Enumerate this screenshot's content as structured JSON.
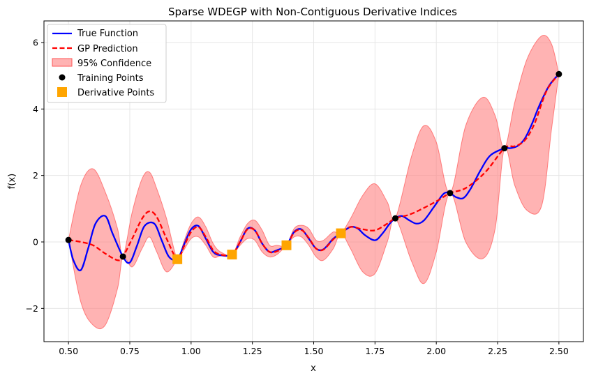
{
  "chart_data": {
    "type": "line",
    "title": "Sparse WDEGP with Non-Contiguous Derivative Indices",
    "xlabel": "x",
    "ylabel": "f(x)",
    "xlim": [
      0.4,
      2.6
    ],
    "ylim": [
      -3.0,
      6.65
    ],
    "xticks": [
      0.5,
      0.75,
      1.0,
      1.25,
      1.5,
      1.75,
      2.0,
      2.25,
      2.5
    ],
    "xtick_labels": [
      "0.50",
      "0.75",
      "1.00",
      "1.25",
      "1.50",
      "1.75",
      "2.00",
      "2.25",
      "2.50"
    ],
    "yticks": [
      -2,
      0,
      2,
      4,
      6
    ],
    "ytick_labels": [
      "−2",
      "0",
      "2",
      "4",
      "6"
    ],
    "grid": true,
    "legend_position": "upper-left",
    "legend": [
      {
        "key": "true",
        "label": "True Function"
      },
      {
        "key": "pred",
        "label": "GP Prediction"
      },
      {
        "key": "conf",
        "label": "95% Confidence"
      },
      {
        "key": "train",
        "label": "Training Points"
      },
      {
        "key": "deriv",
        "label": "Derivative Points"
      }
    ],
    "colors": {
      "true_function": "#0000ff",
      "gp_prediction": "#ff0000",
      "confidence_fill": "#ff8080",
      "confidence_edge": "#ff5555",
      "training_points": "#000000",
      "derivative_points": "#ffa500",
      "grid": "#e6e6e6"
    },
    "training_points": {
      "x": [
        0.5,
        0.722,
        1.833,
        2.056,
        2.278,
        2.5
      ],
      "y": [
        0.06,
        -0.44,
        0.71,
        1.47,
        2.82,
        5.05
      ]
    },
    "derivative_points": {
      "x": [
        0.944,
        1.167,
        1.389,
        1.611
      ],
      "y": [
        -0.52,
        -0.38,
        -0.1,
        0.26
      ]
    },
    "series": [
      {
        "name": "True Function",
        "x": [
          0.5,
          0.52,
          0.55,
          0.58,
          0.61,
          0.65,
          0.68,
          0.722,
          0.75,
          0.78,
          0.81,
          0.85,
          0.88,
          0.91,
          0.944,
          0.97,
          1.0,
          1.03,
          1.06,
          1.09,
          1.12,
          1.167,
          1.2,
          1.23,
          1.26,
          1.29,
          1.32,
          1.35,
          1.389,
          1.42,
          1.45,
          1.48,
          1.51,
          1.54,
          1.58,
          1.611,
          1.65,
          1.68,
          1.71,
          1.75,
          1.78,
          1.81,
          1.833,
          1.86,
          1.89,
          1.92,
          1.95,
          1.99,
          2.03,
          2.056,
          2.08,
          2.11,
          2.14,
          2.18,
          2.22,
          2.278,
          2.3,
          2.33,
          2.36,
          2.39,
          2.42,
          2.46,
          2.5
        ],
        "y": [
          0.06,
          -0.55,
          -0.85,
          -0.2,
          0.55,
          0.78,
          0.25,
          -0.44,
          -0.62,
          -0.1,
          0.48,
          0.55,
          0.05,
          -0.45,
          -0.52,
          -0.1,
          0.38,
          0.48,
          0.1,
          -0.3,
          -0.4,
          -0.38,
          0.0,
          0.4,
          0.35,
          -0.05,
          -0.3,
          -0.25,
          -0.1,
          0.3,
          0.38,
          0.1,
          -0.2,
          -0.22,
          0.1,
          0.26,
          0.45,
          0.4,
          0.2,
          0.05,
          0.25,
          0.55,
          0.71,
          0.78,
          0.65,
          0.55,
          0.65,
          1.05,
          1.45,
          1.47,
          1.35,
          1.32,
          1.6,
          2.15,
          2.6,
          2.82,
          2.82,
          2.88,
          3.1,
          3.55,
          4.1,
          4.7,
          5.05
        ]
      },
      {
        "name": "GP Prediction",
        "x": [
          0.5,
          0.55,
          0.6,
          0.65,
          0.7,
          0.722,
          0.76,
          0.8,
          0.83,
          0.86,
          0.9,
          0.944,
          0.97,
          1.0,
          1.03,
          1.06,
          1.09,
          1.12,
          1.167,
          1.2,
          1.23,
          1.26,
          1.29,
          1.32,
          1.35,
          1.389,
          1.42,
          1.45,
          1.48,
          1.51,
          1.54,
          1.58,
          1.611,
          1.65,
          1.7,
          1.75,
          1.8,
          1.833,
          1.9,
          2.0,
          2.056,
          2.12,
          2.2,
          2.278,
          2.32,
          2.36,
          2.4,
          2.45,
          2.5
        ],
        "y": [
          0.06,
          0.0,
          -0.1,
          -0.35,
          -0.55,
          -0.44,
          0.1,
          0.7,
          0.92,
          0.75,
          0.1,
          -0.52,
          -0.15,
          0.3,
          0.45,
          0.15,
          -0.25,
          -0.38,
          -0.38,
          0.0,
          0.38,
          0.35,
          -0.05,
          -0.3,
          -0.28,
          -0.1,
          0.28,
          0.36,
          0.12,
          -0.2,
          -0.23,
          0.08,
          0.26,
          0.45,
          0.38,
          0.35,
          0.55,
          0.71,
          0.85,
          1.22,
          1.47,
          1.62,
          2.1,
          2.82,
          2.88,
          3.05,
          3.55,
          4.55,
          5.05
        ]
      }
    ],
    "confidence_band": {
      "x": [
        0.5,
        0.55,
        0.6,
        0.65,
        0.7,
        0.722,
        0.76,
        0.8,
        0.83,
        0.86,
        0.9,
        0.944,
        0.97,
        1.0,
        1.03,
        1.06,
        1.09,
        1.12,
        1.167,
        1.2,
        1.23,
        1.26,
        1.29,
        1.32,
        1.35,
        1.389,
        1.42,
        1.45,
        1.48,
        1.51,
        1.54,
        1.58,
        1.611,
        1.65,
        1.7,
        1.75,
        1.8,
        1.833,
        1.9,
        1.95,
        2.0,
        2.056,
        2.12,
        2.19,
        2.24,
        2.278,
        2.32,
        2.37,
        2.43,
        2.47,
        2.5
      ],
      "lower": [
        0.06,
        -1.8,
        -2.5,
        -2.5,
        -1.4,
        -0.44,
        -0.75,
        -0.2,
        0.15,
        -0.3,
        -0.9,
        -0.52,
        -0.25,
        0.1,
        0.15,
        -0.1,
        -0.45,
        -0.42,
        -0.38,
        -0.1,
        0.1,
        0.05,
        -0.3,
        -0.45,
        -0.38,
        -0.1,
        0.15,
        0.15,
        -0.1,
        -0.45,
        -0.55,
        -0.2,
        0.26,
        -0.2,
        -0.9,
        -0.95,
        0.0,
        0.71,
        -0.6,
        -1.25,
        -0.3,
        1.47,
        0.0,
        -0.5,
        0.4,
        2.82,
        1.7,
        0.95,
        1.1,
        3.4,
        5.05
      ],
      "upper": [
        0.06,
        1.7,
        2.2,
        1.5,
        0.4,
        -0.44,
        0.9,
        1.9,
        2.1,
        1.6,
        0.7,
        -0.52,
        0.0,
        0.55,
        0.75,
        0.45,
        -0.05,
        -0.3,
        -0.38,
        0.15,
        0.55,
        0.65,
        0.35,
        -0.1,
        -0.1,
        -0.1,
        0.4,
        0.5,
        0.4,
        0.05,
        0.05,
        0.3,
        0.26,
        0.7,
        1.4,
        1.75,
        1.2,
        0.71,
        2.6,
        3.5,
        3.0,
        1.47,
        3.5,
        4.35,
        3.8,
        2.82,
        4.2,
        5.5,
        6.2,
        5.95,
        5.05
      ]
    }
  }
}
